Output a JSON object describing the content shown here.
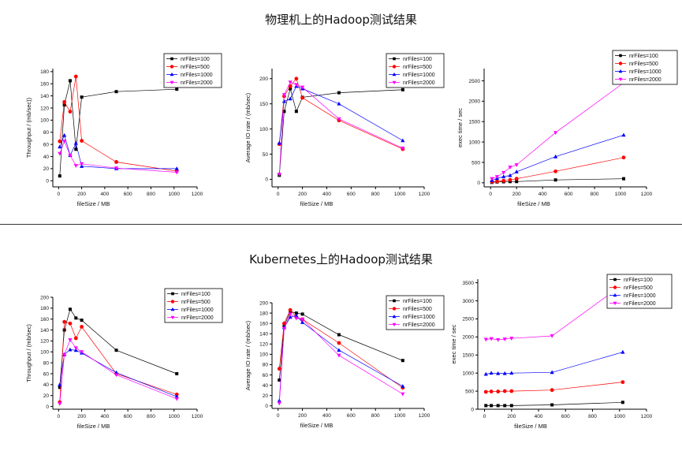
{
  "titles": {
    "top": "物理机上的Hadoop测试结果",
    "bottom": "Kubernetes上的Hadoop测试结果"
  },
  "chart_data": [
    {
      "type": "line",
      "group": "physical",
      "xlabel": "fileSize / MB",
      "ylabel": "Throughput / (mb/sec))",
      "xlim": [
        -50,
        1200
      ],
      "ylim": [
        -10,
        185
      ],
      "xticks": [
        0,
        200,
        400,
        600,
        800,
        1000,
        1200
      ],
      "yticks": [
        0,
        20,
        40,
        60,
        80,
        100,
        120,
        140,
        160,
        180
      ],
      "legend": "top-right",
      "x": [
        10,
        50,
        100,
        150,
        200,
        500,
        1024
      ],
      "series": [
        {
          "name": "nrFiles=100",
          "color": "#000000",
          "marker": "square",
          "values": [
            8,
            125,
            165,
            52,
            138,
            147,
            151
          ]
        },
        {
          "name": "nrFiles=500",
          "color": "#ff0000",
          "marker": "circle",
          "values": [
            65,
            130,
            114,
            172,
            66,
            31,
            16
          ]
        },
        {
          "name": "nrFiles=1000",
          "color": "#0000ff",
          "marker": "triangle-up",
          "values": [
            56,
            75,
            42,
            62,
            24,
            20,
            20
          ]
        },
        {
          "name": "nrFiles=2000",
          "color": "#ff00ff",
          "marker": "triangle-down",
          "values": [
            45,
            65,
            42,
            25,
            28,
            21,
            14
          ]
        }
      ]
    },
    {
      "type": "line",
      "group": "physical",
      "xlabel": "fileSize / MB",
      "ylabel": "Average IO rate / (mb/sec)",
      "xlim": [
        -50,
        1200
      ],
      "ylim": [
        -15,
        220
      ],
      "xticks": [
        0,
        200,
        400,
        600,
        800,
        1000,
        1200
      ],
      "yticks": [
        0,
        50,
        100,
        150,
        200
      ],
      "legend": "top-right",
      "x": [
        10,
        50,
        100,
        150,
        200,
        500,
        1024
      ],
      "series": [
        {
          "name": "nrFiles=100",
          "color": "#000000",
          "marker": "square",
          "values": [
            8,
            135,
            180,
            135,
            163,
            172,
            178
          ]
        },
        {
          "name": "nrFiles=500",
          "color": "#ff0000",
          "marker": "circle",
          "values": [
            70,
            165,
            185,
            200,
            162,
            117,
            60
          ]
        },
        {
          "name": "nrFiles=1000",
          "color": "#0000ff",
          "marker": "triangle-up",
          "values": [
            72,
            155,
            160,
            185,
            180,
            150,
            77
          ]
        },
        {
          "name": "nrFiles=2000",
          "color": "#ff00ff",
          "marker": "triangle-down",
          "values": [
            10,
            168,
            193,
            188,
            183,
            120,
            62
          ]
        }
      ]
    },
    {
      "type": "line",
      "group": "physical",
      "xlabel": "fileSize / MB",
      "ylabel": "exec time / sec",
      "xlim": [
        -50,
        1200
      ],
      "ylim": [
        -100,
        2800
      ],
      "xticks": [
        0,
        200,
        400,
        600,
        800,
        1000,
        1200
      ],
      "yticks": [
        0,
        500,
        1000,
        1500,
        2000,
        2500
      ],
      "legend": "top-right",
      "x": [
        10,
        50,
        100,
        150,
        200,
        500,
        1024
      ],
      "series": [
        {
          "name": "nrFiles=100",
          "color": "#000000",
          "marker": "square",
          "values": [
            10,
            20,
            25,
            30,
            30,
            70,
            100
          ]
        },
        {
          "name": "nrFiles=500",
          "color": "#ff0000",
          "marker": "circle",
          "values": [
            25,
            35,
            50,
            70,
            100,
            280,
            620
          ]
        },
        {
          "name": "nrFiles=1000",
          "color": "#0000ff",
          "marker": "triangle-up",
          "values": [
            60,
            110,
            150,
            180,
            270,
            640,
            1170
          ]
        },
        {
          "name": "nrFiles=2000",
          "color": "#ff00ff",
          "marker": "triangle-down",
          "values": [
            100,
            150,
            250,
            380,
            440,
            1230,
            2450
          ]
        }
      ]
    },
    {
      "type": "line",
      "group": "kubernetes",
      "xlabel": "fileSize / MB",
      "ylabel": "Throughput / (mb/sec)",
      "xlim": [
        -50,
        1200
      ],
      "ylim": [
        -5,
        200
      ],
      "xticks": [
        0,
        200,
        400,
        600,
        800,
        1000,
        1200
      ],
      "yticks": [
        0,
        20,
        40,
        60,
        80,
        100,
        120,
        140,
        160,
        180,
        200
      ],
      "legend": "top-right",
      "x": [
        10,
        50,
        100,
        150,
        200,
        500,
        1024
      ],
      "series": [
        {
          "name": "nrFiles=100",
          "color": "#000000",
          "marker": "square",
          "values": [
            35,
            140,
            178,
            162,
            158,
            103,
            60
          ]
        },
        {
          "name": "nrFiles=500",
          "color": "#ff0000",
          "marker": "circle",
          "values": [
            8,
            155,
            152,
            125,
            146,
            60,
            22
          ]
        },
        {
          "name": "nrFiles=1000",
          "color": "#0000ff",
          "marker": "triangle-up",
          "values": [
            40,
            95,
            104,
            103,
            98,
            62,
            18
          ]
        },
        {
          "name": "nrFiles=2000",
          "color": "#ff00ff",
          "marker": "triangle-down",
          "values": [
            5,
            95,
            122,
            107,
            100,
            58,
            14
          ]
        }
      ]
    },
    {
      "type": "line",
      "group": "kubernetes",
      "xlabel": "fileSize / MB",
      "ylabel": "Average IO rate / (mb/sec)",
      "xlim": [
        -50,
        1200
      ],
      "ylim": [
        -5,
        200
      ],
      "xticks": [
        0,
        200,
        400,
        600,
        800,
        1000,
        1200
      ],
      "yticks": [
        0,
        20,
        40,
        60,
        80,
        100,
        120,
        140,
        160,
        180,
        200
      ],
      "legend": "top-right",
      "x": [
        10,
        50,
        100,
        150,
        200,
        500,
        1024
      ],
      "series": [
        {
          "name": "nrFiles=100",
          "color": "#000000",
          "marker": "square",
          "values": [
            50,
            155,
            183,
            180,
            178,
            138,
            88
          ]
        },
        {
          "name": "nrFiles=500",
          "color": "#ff0000",
          "marker": "circle",
          "values": [
            72,
            160,
            186,
            172,
            168,
            122,
            35
          ]
        },
        {
          "name": "nrFiles=1000",
          "color": "#0000ff",
          "marker": "triangle-up",
          "values": [
            10,
            152,
            172,
            175,
            162,
            108,
            38
          ]
        },
        {
          "name": "nrFiles=2000",
          "color": "#ff00ff",
          "marker": "triangle-down",
          "values": [
            5,
            150,
            178,
            170,
            168,
            98,
            23
          ]
        }
      ]
    },
    {
      "type": "line",
      "group": "kubernetes",
      "xlabel": "fileSize / MB",
      "ylabel": "exec time / sec",
      "xlim": [
        -50,
        1200
      ],
      "ylim": [
        0,
        3600
      ],
      "xticks": [
        0,
        200,
        400,
        600,
        800,
        1000,
        1200
      ],
      "yticks": [
        0,
        500,
        1000,
        1500,
        2000,
        2500,
        3000,
        3500
      ],
      "legend": "top-right",
      "x": [
        10,
        50,
        100,
        150,
        200,
        500,
        1024
      ],
      "series": [
        {
          "name": "nrFiles=100",
          "color": "#000000",
          "marker": "square",
          "values": [
            100,
            100,
            100,
            100,
            100,
            120,
            190
          ]
        },
        {
          "name": "nrFiles=500",
          "color": "#ff0000",
          "marker": "circle",
          "values": [
            480,
            490,
            490,
            500,
            500,
            530,
            750
          ]
        },
        {
          "name": "nrFiles=1000",
          "color": "#0000ff",
          "marker": "triangle-up",
          "values": [
            970,
            1000,
            990,
            990,
            1000,
            1020,
            1580
          ]
        },
        {
          "name": "nrFiles=2000",
          "color": "#ff00ff",
          "marker": "triangle-down",
          "values": [
            1930,
            1950,
            1920,
            1940,
            1960,
            2030,
            3450
          ]
        }
      ]
    }
  ]
}
